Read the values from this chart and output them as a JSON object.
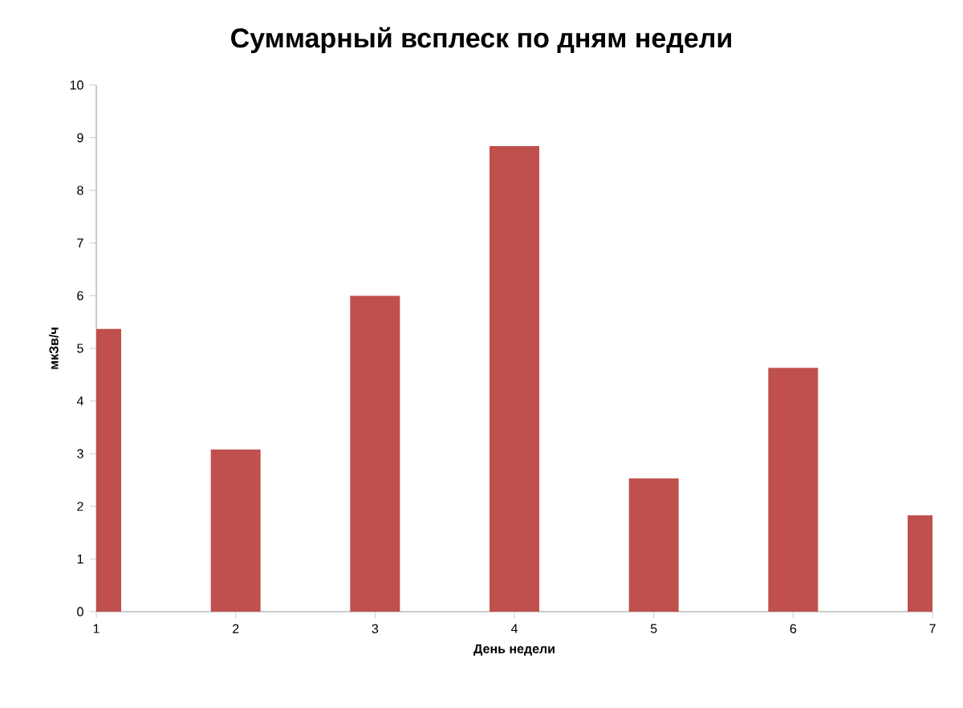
{
  "chart_data": {
    "type": "bar",
    "title": "Суммарный всплеск по дням недели",
    "xlabel": "День недели",
    "ylabel": "мкЗв/ч",
    "categories": [
      "1",
      "2",
      "3",
      "4",
      "5",
      "6",
      "7"
    ],
    "values": [
      5.37,
      3.08,
      6.0,
      8.84,
      2.53,
      4.63,
      1.83
    ],
    "color": "#c0504d",
    "ylim": [
      0,
      10
    ],
    "yticks": [
      0,
      1,
      2,
      3,
      4,
      5,
      6,
      7,
      8,
      9,
      10
    ],
    "grid": false
  }
}
